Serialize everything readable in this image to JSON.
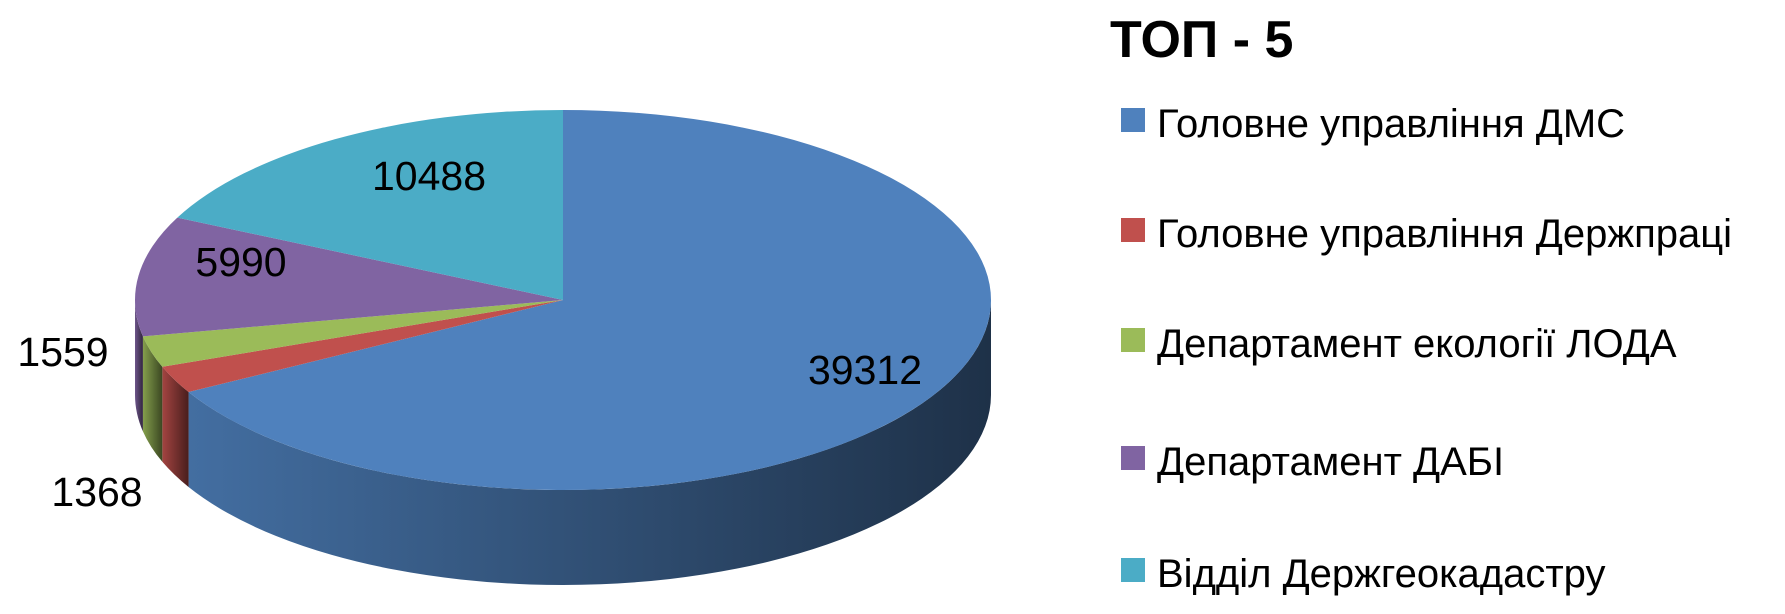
{
  "chart_data": {
    "type": "pie",
    "title": "ТОП - 5",
    "categories": [
      "Головне управління ДМС",
      "Головне управління Держпраці",
      "Департамент екології ЛОДА",
      "Департамент ДАБІ",
      "Відділ Держгеокадастру"
    ],
    "values": [
      39312,
      1368,
      1559,
      5990,
      10488
    ],
    "colors": [
      "#4f81bd",
      "#c0504d",
      "#9bbb59",
      "#8064a2",
      "#4bacc6"
    ],
    "legend": "right"
  }
}
